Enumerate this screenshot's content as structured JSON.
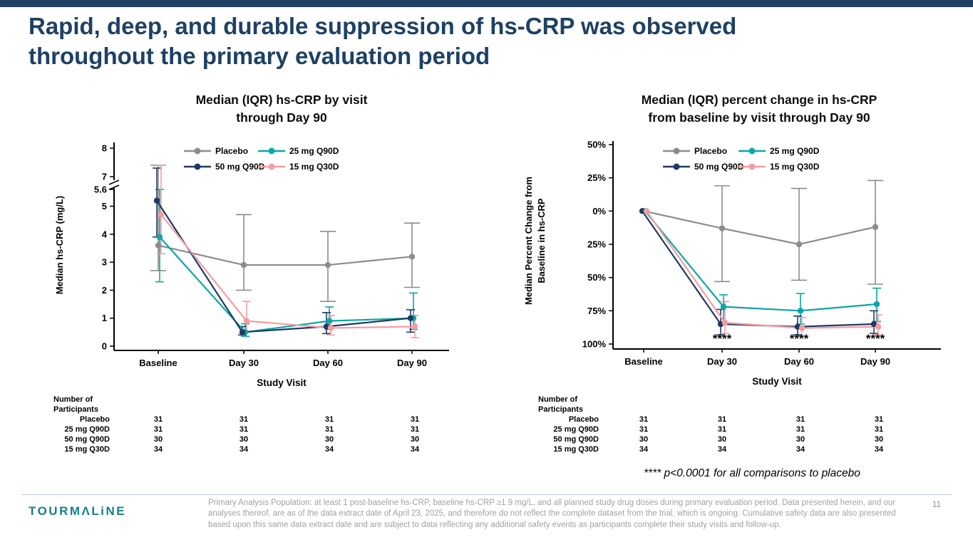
{
  "slide": {
    "title_line1": "Rapid, deep, and durable suppression of hs-CRP was observed",
    "title_line2": "throughout the primary evaluation period",
    "page_number": "11",
    "logo_text": "TOURMΛLiNE",
    "significance_note": "**** p<0.0001 for all comparisons to placebo",
    "footnote": "Primary Analysis Population: at least 1 post-baseline hs-CRP, baseline hs-CRP ≥1.9 mg/L, and all planned study drug doses during primary evaluation period. Data presented herein, and our analyses thereof, are as of the data extract date of April 23, 2025, and therefore do not reflect the complete dataset from the trial, which is ongoing. Cumulative safety data are also presented based upon this same data extract date and are subject to data reflecting any additional safety events as participants complete their study visits and follow-up."
  },
  "colors": {
    "accent_navy": "#1E4164",
    "placebo": "#8C8C8C",
    "q90d25": "#0AA7A4",
    "q90d50": "#1F3A63",
    "q30d15": "#F49CA3"
  },
  "participants": {
    "header": [
      "Number of",
      "Participants"
    ],
    "rows": [
      {
        "label": "Placebo",
        "values": [
          "31",
          "31",
          "31",
          "31"
        ]
      },
      {
        "label": "25 mg Q90D",
        "values": [
          "31",
          "31",
          "31",
          "31"
        ]
      },
      {
        "label": "50 mg Q90D",
        "values": [
          "30",
          "30",
          "30",
          "30"
        ]
      },
      {
        "label": "15 mg Q30D",
        "values": [
          "34",
          "34",
          "34",
          "34"
        ]
      }
    ]
  },
  "chart_data": [
    {
      "type": "line",
      "title_lines": [
        "Median (IQR) hs-CRP by visit",
        "through Day 90"
      ],
      "xlabel": "Study Visit",
      "ylabel_lines": [
        "Median hs-CRP (mg/L)"
      ],
      "categories": [
        "Baseline",
        "Day 30",
        "Day 60",
        "Day 90"
      ],
      "y_axis": {
        "type": "broken",
        "break_between": [
          5.6,
          7
        ],
        "ticks": [
          {
            "v": 8,
            "label": "8"
          },
          {
            "v": 7,
            "label": "7"
          },
          {
            "v": 5.6,
            "label": "5.6"
          },
          {
            "v": 5,
            "label": "5"
          },
          {
            "v": 4,
            "label": "4"
          },
          {
            "v": 3,
            "label": "3"
          },
          {
            "v": 2,
            "label": "2"
          },
          {
            "v": 1,
            "label": "1"
          },
          {
            "v": 0,
            "label": "0"
          }
        ]
      },
      "series": [
        {
          "name": "Placebo",
          "color_key": "placebo",
          "median": [
            3.6,
            2.9,
            2.9,
            3.2
          ],
          "q1": [
            2.7,
            2.0,
            1.6,
            2.1
          ],
          "q3": [
            7.4,
            4.7,
            4.1,
            4.4
          ]
        },
        {
          "name": "25 mg Q90D",
          "color_key": "q90d25",
          "median": [
            3.9,
            0.5,
            0.9,
            1.0
          ],
          "q1": [
            2.3,
            0.35,
            0.6,
            0.6
          ],
          "q3": [
            5.6,
            0.8,
            1.4,
            1.9
          ]
        },
        {
          "name": "50 mg Q90D",
          "color_key": "q90d50",
          "median": [
            5.2,
            0.5,
            0.7,
            1.0
          ],
          "q1": [
            3.9,
            0.4,
            0.45,
            0.5
          ],
          "q3": [
            7.3,
            0.7,
            1.2,
            1.3
          ]
        },
        {
          "name": "15 mg Q30D",
          "color_key": "q30d15",
          "median": [
            4.7,
            0.9,
            0.65,
            0.7
          ],
          "q1": [
            3.3,
            0.5,
            0.4,
            0.3
          ],
          "q3": [
            7.4,
            1.6,
            1.1,
            1.1
          ]
        }
      ],
      "annotations": []
    },
    {
      "type": "line",
      "title_lines": [
        "Median (IQR) percent change in hs-CRP",
        "from baseline by visit through Day 90"
      ],
      "xlabel": "Study Visit",
      "ylabel_lines": [
        "Median Percent Change from",
        "Baseline in hs-CRP"
      ],
      "categories": [
        "Baseline",
        "Day 30",
        "Day 60",
        "Day 90"
      ],
      "y_axis": {
        "type": "linear",
        "min": -100,
        "max": 50,
        "ticks": [
          {
            "v": 50,
            "label": "50%"
          },
          {
            "v": 25,
            "label": "25%"
          },
          {
            "v": 0,
            "label": "0%"
          },
          {
            "v": -25,
            "label": "25%"
          },
          {
            "v": -50,
            "label": "50%"
          },
          {
            "v": -75,
            "label": "75%"
          },
          {
            "v": -100,
            "label": "100%"
          }
        ]
      },
      "series": [
        {
          "name": "Placebo",
          "color_key": "placebo",
          "median": [
            0,
            -13,
            -25,
            -12
          ],
          "q1": [
            0,
            -53,
            -52,
            -55
          ],
          "q3": [
            0,
            19,
            17,
            23
          ]
        },
        {
          "name": "25 mg Q90D",
          "color_key": "q90d25",
          "median": [
            0,
            -72,
            -75,
            -70
          ],
          "q1": [
            0,
            -85,
            -85,
            -83
          ],
          "q3": [
            0,
            -63,
            -62,
            -58
          ]
        },
        {
          "name": "50 mg Q90D",
          "color_key": "q90d50",
          "median": [
            0,
            -85,
            -87,
            -85
          ],
          "q1": [
            0,
            -93,
            -93,
            -92
          ],
          "q3": [
            0,
            -74,
            -79,
            -75
          ]
        },
        {
          "name": "15 mg Q30D",
          "color_key": "q30d15",
          "median": [
            0,
            -84,
            -88,
            -87
          ],
          "q1": [
            0,
            -92,
            -94,
            -93
          ],
          "q3": [
            0,
            -68,
            -80,
            -78
          ]
        }
      ],
      "annotations": [
        {
          "cat": 1,
          "v": -99,
          "text": "****"
        },
        {
          "cat": 2,
          "v": -99,
          "text": "****"
        },
        {
          "cat": 3,
          "v": -99,
          "text": "****"
        }
      ]
    }
  ]
}
